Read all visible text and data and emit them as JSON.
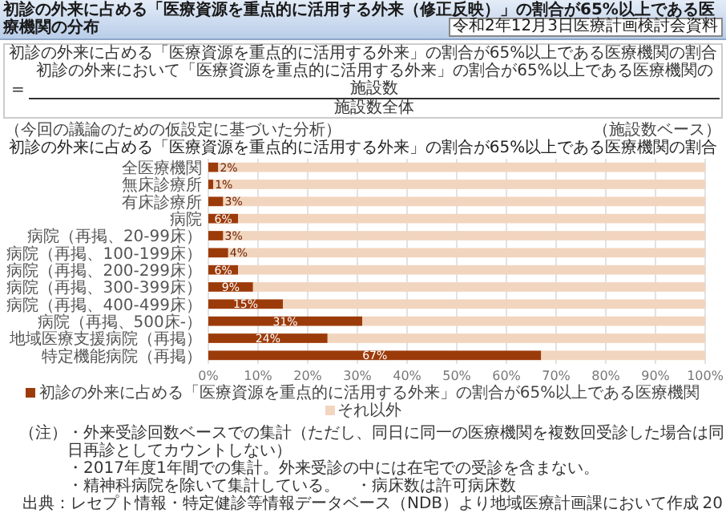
{
  "chart_data": {
    "type": "bar",
    "orientation": "horizontal",
    "stacked": true,
    "title": "初診の外来に占める「医療資源を重点的に活用する外来（修正反映）」の割合が65%以上である医療機関の分布",
    "subtitle": "初診の外来に占める「医療資源を重点的に活用する外来」の割合が65%以上である医療機関の割合",
    "categories": [
      "全医療機関",
      "無床診療所",
      "有床診療所",
      "病院",
      "病院（再掲、20-99床）",
      "病院（再掲、100-199床）",
      "病院（再掲、200-299床）",
      "病院（再掲、300-399床）",
      "病院（再掲、400-499床）",
      "病院（再掲、500床-）",
      "地域医療支援病院（再掲）",
      "特定機能病院（再掲）"
    ],
    "series": [
      {
        "name": "初診の外来に占める「医療資源を重点的に活用する外来」の割合が65%以上である医療機関",
        "color": "#9c3b0a",
        "values": [
          2,
          1,
          3,
          6,
          3,
          4,
          6,
          9,
          15,
          31,
          24,
          67
        ],
        "value_labels": [
          "2%",
          "1%",
          "3%",
          "6%",
          "3%",
          "4%",
          "6%",
          "9%",
          "15%",
          "31%",
          "24%",
          "67%"
        ]
      },
      {
        "name": "それ以外",
        "color": "#f2d5bf",
        "values": [
          98,
          99,
          97,
          94,
          97,
          96,
          94,
          91,
          85,
          69,
          76,
          33
        ]
      }
    ],
    "xlim": [
      0,
      100
    ],
    "xticks": [
      {
        "value": 0,
        "label": "0%"
      },
      {
        "value": 10,
        "label": "10%"
      },
      {
        "value": 20,
        "label": "20%"
      },
      {
        "value": 30,
        "label": "30%"
      },
      {
        "value": 40,
        "label": "40%"
      },
      {
        "value": 50,
        "label": "50%"
      },
      {
        "value": 60,
        "label": "60%"
      },
      {
        "value": 70,
        "label": "70%"
      },
      {
        "value": 80,
        "label": "80%"
      },
      {
        "value": 90,
        "label": "90%"
      },
      {
        "value": 100,
        "label": "100%"
      }
    ],
    "grid": "x",
    "legend": "bottom",
    "annotations": [
      "令和2年12月3日医療計画検討会資料",
      "初診の外来に占める「医療資源を重点的に活用する外来」の割合が65%以上である医療機関の割合",
      "=",
      "初診の外来において「医療資源を重点的に活用する外来」の割合が65%以上である医療機関の施設数",
      "施設数全体",
      "（今回の議論のための仮設定に基づいた分析）",
      "（施設数ベース）",
      "（注）",
      "・外来受診回数ベースでの集計（ただし、同日に同一の医療機関を複数回受診した場合は同日再診としてカウントしない）",
      "・2017年度1年間での集計。外来受診の中には在宅での受診を含まない。",
      "・精神科病院を除いて集計している。",
      "・病床数は許可病床数",
      "出典：レセプト情報・特定健診等情報データベース（NDB）より地域医療計画課において作成",
      "20"
    ]
  }
}
